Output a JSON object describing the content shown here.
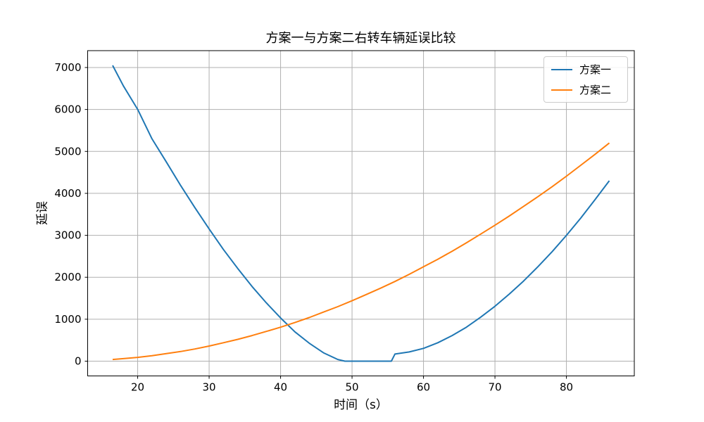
{
  "title": "方案一与方案二右转车辆延误比较",
  "axes": {
    "xlabel": "时间（s）",
    "ylabel": "延误"
  },
  "legend": [
    {
      "label": "方案一",
      "color": "#1f77b4"
    },
    {
      "label": "方案二",
      "color": "#ff7f0e"
    }
  ],
  "colors": {
    "grid": "#b0b0b0",
    "spine": "#000000",
    "background": "#ffffff"
  },
  "chart_data": {
    "type": "line",
    "title": "方案一与方案二右转车辆延误比较",
    "xlabel": "时间（s）",
    "ylabel": "延误",
    "xlim": [
      13.0,
      89.5
    ],
    "ylim": [
      -352,
      7402
    ],
    "xticks": [
      20,
      30,
      40,
      50,
      60,
      70,
      80
    ],
    "yticks": [
      0,
      1000,
      2000,
      3000,
      4000,
      5000,
      6000,
      7000
    ],
    "grid": true,
    "legend_position": "upper right",
    "series": [
      {
        "name": "方案一",
        "color": "#1f77b4",
        "x": [
          16.5,
          18,
          20,
          22,
          24,
          26,
          28,
          30,
          32,
          34,
          36,
          38,
          40,
          42,
          44,
          46,
          48,
          49,
          50,
          52,
          54,
          55.5,
          56,
          58,
          60,
          62,
          64,
          66,
          68,
          70,
          72,
          74,
          76,
          78,
          80,
          82,
          84,
          86
        ],
        "y": [
          7050,
          6560,
          6000,
          5300,
          4750,
          4190,
          3660,
          3150,
          2660,
          2210,
          1780,
          1390,
          1030,
          700,
          430,
          200,
          40,
          0,
          0,
          0,
          0,
          0,
          170,
          220,
          305,
          440,
          610,
          810,
          1050,
          1310,
          1600,
          1910,
          2250,
          2610,
          3000,
          3410,
          3850,
          4300
        ]
      },
      {
        "name": "方案二",
        "color": "#ff7f0e",
        "x": [
          16.5,
          18,
          20,
          22,
          24,
          26,
          28,
          30,
          32,
          34,
          36,
          38,
          40,
          42,
          44,
          46,
          48,
          50,
          52,
          54,
          56,
          58,
          60,
          62,
          64,
          66,
          68,
          70,
          72,
          74,
          76,
          78,
          80,
          82,
          84,
          86
        ],
        "y": [
          40,
          60,
          90,
          130,
          180,
          230,
          290,
          360,
          440,
          520,
          610,
          710,
          810,
          920,
          1040,
          1170,
          1300,
          1440,
          1590,
          1740,
          1900,
          2070,
          2250,
          2430,
          2620,
          2820,
          3030,
          3240,
          3460,
          3690,
          3920,
          4160,
          4410,
          4670,
          4930,
          5200
        ]
      }
    ]
  }
}
